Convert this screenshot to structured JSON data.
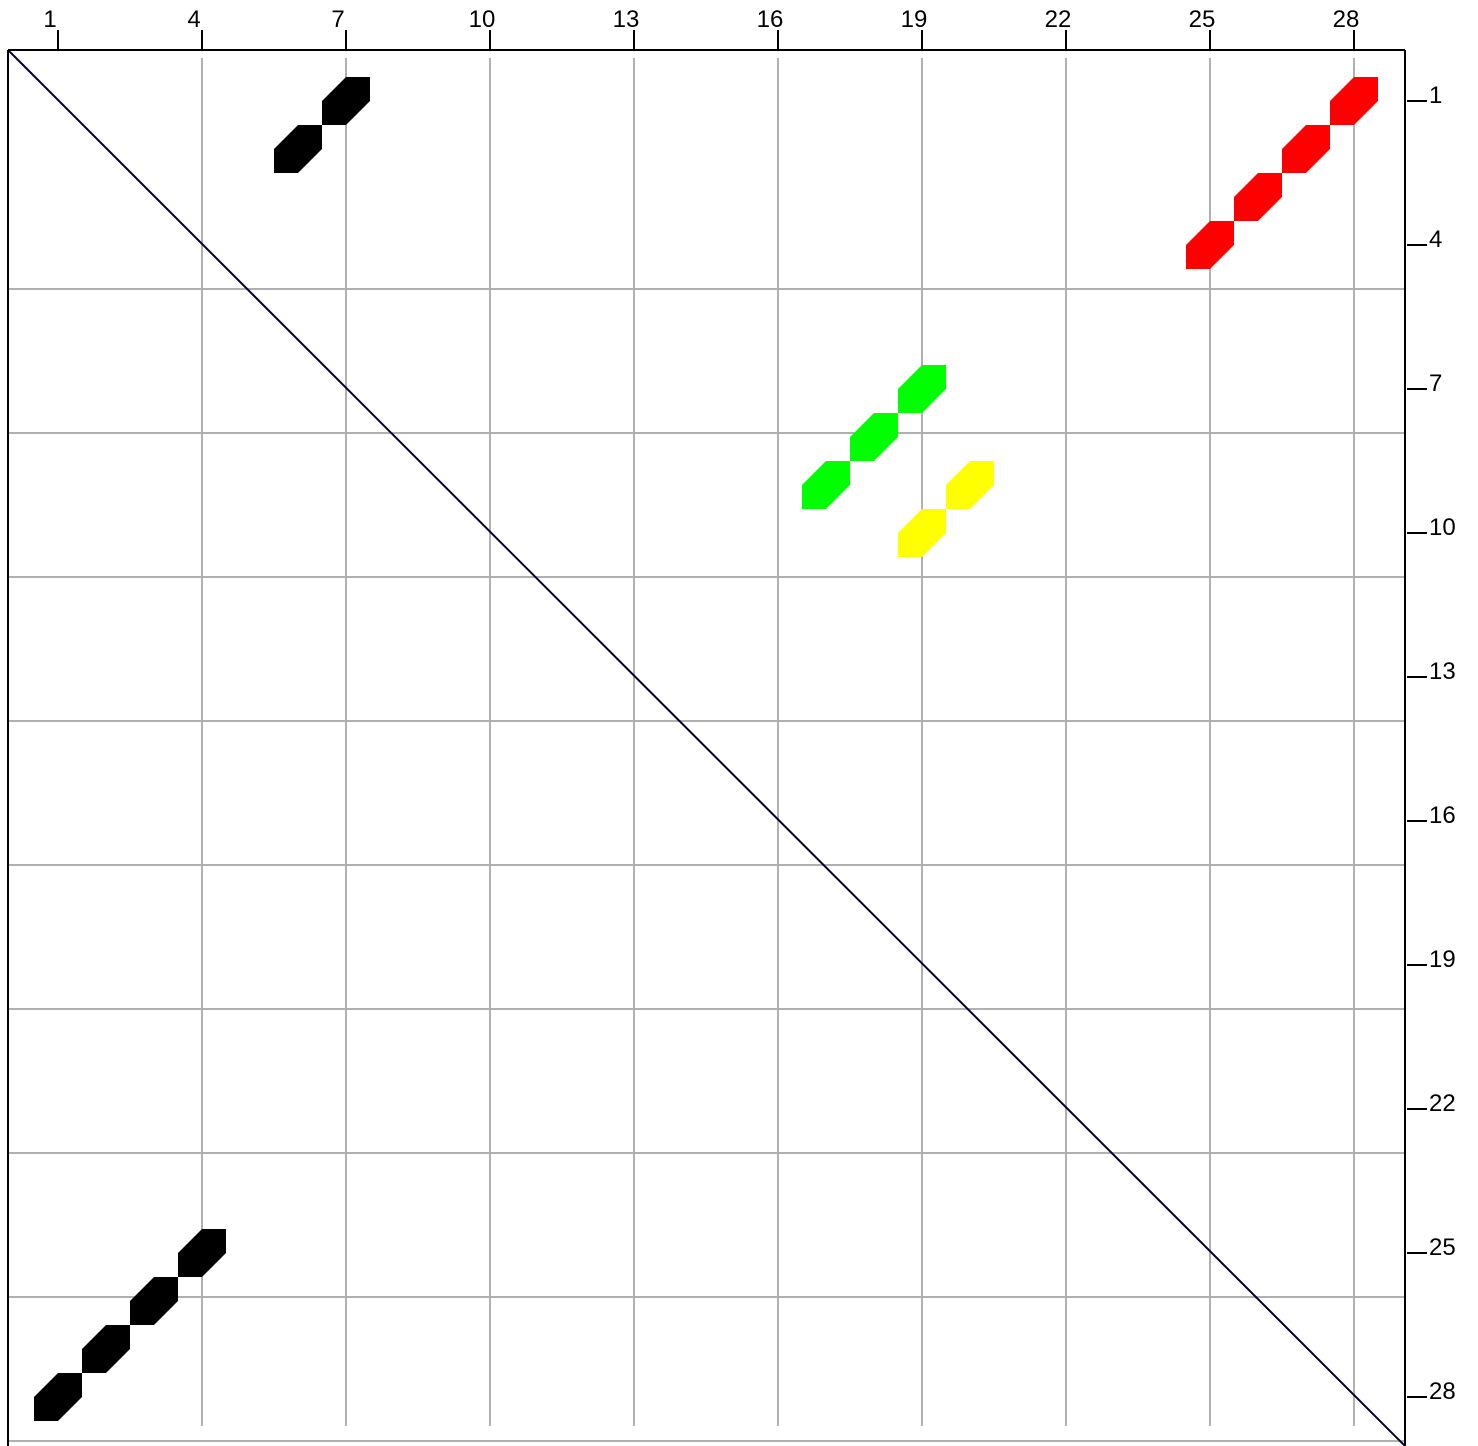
{
  "chart_data": {
    "type": "heatmap",
    "title": "",
    "xlabel": "",
    "ylabel": "",
    "x_range": [
      1,
      29
    ],
    "y_range": [
      1,
      29
    ],
    "grid": true,
    "legend": "none",
    "diagonal_line": true,
    "top_ticks": [
      {
        "value": 1,
        "label": "1"
      },
      {
        "value": 4,
        "label": "4"
      },
      {
        "value": 7,
        "label": "7"
      },
      {
        "value": 10,
        "label": "10"
      },
      {
        "value": 13,
        "label": "13"
      },
      {
        "value": 16,
        "label": "16"
      },
      {
        "value": 19,
        "label": "19"
      },
      {
        "value": 22,
        "label": "22"
      },
      {
        "value": 25,
        "label": "25"
      },
      {
        "value": 28,
        "label": "28"
      }
    ],
    "right_ticks": [
      {
        "value": 1,
        "label": "1"
      },
      {
        "value": 4,
        "label": "4"
      },
      {
        "value": 7,
        "label": "7"
      },
      {
        "value": 10,
        "label": "10"
      },
      {
        "value": 13,
        "label": "13"
      },
      {
        "value": 16,
        "label": "16"
      },
      {
        "value": 19,
        "label": "19"
      },
      {
        "value": 22,
        "label": "22"
      },
      {
        "value": 25,
        "label": "25"
      },
      {
        "value": 28,
        "label": "28"
      }
    ],
    "series": [
      {
        "color": "#000000",
        "points": [
          [
            6,
            3
          ],
          [
            7,
            2
          ]
        ]
      },
      {
        "color": "#ff0000",
        "points": [
          [
            25,
            5
          ],
          [
            26,
            4
          ],
          [
            27,
            3
          ],
          [
            28,
            2
          ]
        ]
      },
      {
        "color": "#00ff00",
        "points": [
          [
            17,
            10
          ],
          [
            18,
            9
          ],
          [
            19,
            8
          ]
        ]
      },
      {
        "color": "#ffff00",
        "points": [
          [
            19,
            11
          ],
          [
            20,
            10
          ]
        ]
      },
      {
        "color": "#000000",
        "points": [
          [
            1,
            29
          ],
          [
            2,
            28
          ],
          [
            3,
            27
          ],
          [
            4,
            26
          ]
        ]
      }
    ]
  },
  "colors": {
    "grid": "#b0b0b0",
    "frame": "#000000",
    "diagonal": "#000033",
    "background": "#ffffff"
  }
}
